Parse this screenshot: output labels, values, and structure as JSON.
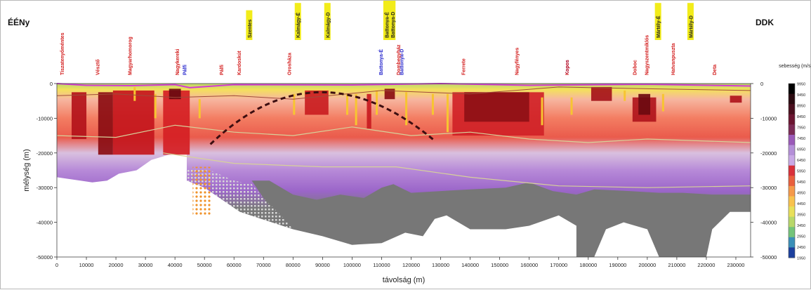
{
  "chart_data": {
    "type": "heatmap",
    "left_label": "ÉÉNy",
    "right_label": "DDK",
    "xlabel": "távolság (m)",
    "ylabel": "mélység (m)",
    "xlim": [
      0,
      235000
    ],
    "ylim": [
      -50000,
      0
    ],
    "x_ticks": [
      "0",
      "10000",
      "20000",
      "30000",
      "40000",
      "50000",
      "60000",
      "70000",
      "80000",
      "90000",
      "100000",
      "110000",
      "120000",
      "130000",
      "140000",
      "150000",
      "160000",
      "170000",
      "180000",
      "190000",
      "200000",
      "210000",
      "220000",
      "230000"
    ],
    "y_ticks": [
      "0",
      "-10000",
      "-20000",
      "-30000",
      "-40000",
      "-50000"
    ],
    "colorbar": {
      "title": "sebesség (m/s)",
      "labels": [
        "9950",
        "9450",
        "8950",
        "8450",
        "7950",
        "7450",
        "6950",
        "6450",
        "5950",
        "5450",
        "4950",
        "4450",
        "3950",
        "3450",
        "2950",
        "2450",
        "1950"
      ],
      "colors": [
        "#000000",
        "#2a0a10",
        "#4a0f1e",
        "#6b1530",
        "#7b2a55",
        "#9a5ab8",
        "#b48fd8",
        "#c9a9e6",
        "#d9303a",
        "#e95f3d",
        "#f5994a",
        "#f8c24e",
        "#e8e05a",
        "#b8d86a",
        "#74c47a",
        "#3a8fb8",
        "#1b3f9e"
      ]
    },
    "surface_labels": [
      {
        "x": 2000,
        "text": "Tiszatenyőméntes",
        "color": "#d21a1a"
      },
      {
        "x": 14000,
        "text": "Vésztő",
        "color": "#d21a1a"
      },
      {
        "x": 25000,
        "text": "Magyarhomorog",
        "color": "#d21a1a"
      },
      {
        "x": 41000,
        "text": "Nagykereki",
        "color": "#d21a1a"
      },
      {
        "x": 43500,
        "text": "Pálfi",
        "color": "#2424cc"
      },
      {
        "x": 56000,
        "text": "Pálfi",
        "color": "#d21a1a"
      },
      {
        "x": 62000,
        "text": "Kardoskút",
        "color": "#d21a1a"
      },
      {
        "x": 65500,
        "text": "Szentes",
        "color": "#222222",
        "highlight": true
      },
      {
        "x": 79000,
        "text": "Orosháza",
        "color": "#d21a1a"
      },
      {
        "x": 82000,
        "text": "Kalmágy-É",
        "color": "#222222",
        "highlight": true
      },
      {
        "x": 92000,
        "text": "Kalmágy-D",
        "color": "#222222",
        "highlight": true
      },
      {
        "x": 110000,
        "text": "Battonya-É",
        "color": "#2424cc"
      },
      {
        "x": 112000,
        "text": "Battonya-É",
        "color": "#222222",
        "highlight": true
      },
      {
        "x": 114000,
        "text": "Battonya-D",
        "color": "#222222",
        "highlight": true
      },
      {
        "x": 116000,
        "text": "Dombegyház",
        "color": "#d21a1a"
      },
      {
        "x": 117000,
        "text": "Battonya-D",
        "color": "#2424cc"
      },
      {
        "x": 138000,
        "text": "Ferrete",
        "color": "#d21a1a"
      },
      {
        "x": 156000,
        "text": "Nagyfényes",
        "color": "#d21a1a"
      },
      {
        "x": 173000,
        "text": "Kopos",
        "color": "#2424cc"
      },
      {
        "x": 173000,
        "text": "Kopos",
        "color": "#d21a1a"
      },
      {
        "x": 196000,
        "text": "Doboc",
        "color": "#d21a1a"
      },
      {
        "x": 200000,
        "text": "Nagyszentmiklós",
        "color": "#d21a1a"
      },
      {
        "x": 204000,
        "text": "Mártély-É",
        "color": "#222222",
        "highlight": true
      },
      {
        "x": 209000,
        "text": "Hatvanpuszta",
        "color": "#d21a1a"
      },
      {
        "x": 215000,
        "text": "Mártély-D",
        "color": "#222222",
        "highlight": true
      },
      {
        "x": 223000,
        "text": "Deta",
        "color": "#d21a1a"
      }
    ]
  }
}
